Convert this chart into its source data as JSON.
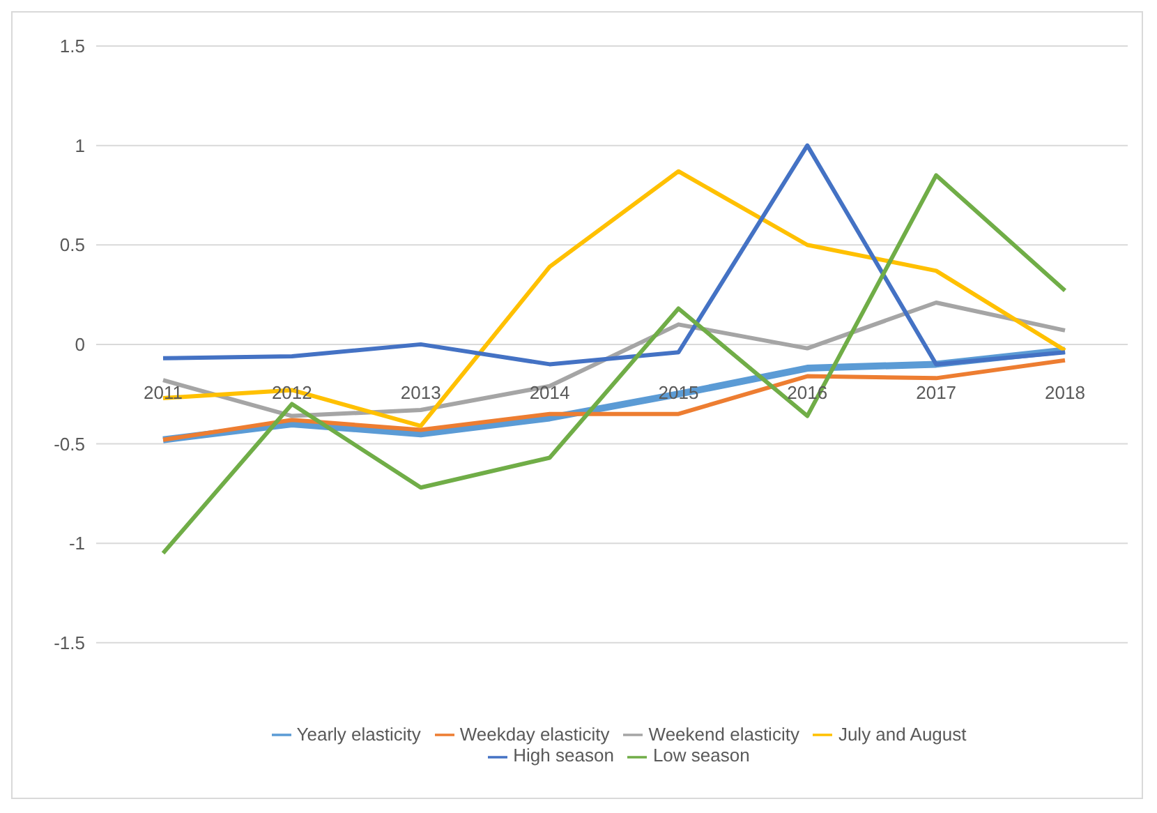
{
  "chart_data": {
    "type": "line",
    "categories": [
      "2011",
      "2012",
      "2013",
      "2014",
      "2015",
      "2016",
      "2017",
      "2018"
    ],
    "series": [
      {
        "name": "Yearly elasticity",
        "color": "#5b9bd5",
        "values": [
          -0.48,
          -0.4,
          -0.45,
          -0.37,
          -0.25,
          -0.12,
          -0.1,
          -0.03
        ]
      },
      {
        "name": "Weekday elasticity",
        "color": "#ed7d31",
        "values": [
          -0.48,
          -0.38,
          -0.43,
          -0.35,
          -0.35,
          -0.16,
          -0.17,
          -0.08
        ]
      },
      {
        "name": "Weekend elasticity",
        "color": "#a5a5a5",
        "values": [
          -0.18,
          -0.36,
          -0.33,
          -0.21,
          0.1,
          -0.02,
          0.21,
          0.07
        ]
      },
      {
        "name": "July and August",
        "color": "#ffc000",
        "values": [
          -0.27,
          -0.23,
          -0.41,
          0.39,
          0.87,
          0.5,
          0.37,
          -0.03
        ]
      },
      {
        "name": "High season",
        "color": "#4472c4",
        "values": [
          -0.07,
          -0.06,
          0,
          -0.1,
          -0.04,
          1.0,
          -0.1,
          -0.04
        ]
      },
      {
        "name": "Low season",
        "color": "#70ad47",
        "values": [
          -1.05,
          -0.3,
          -0.72,
          -0.57,
          0.18,
          -0.36,
          0.85,
          0.27
        ]
      }
    ],
    "ylim": [
      -1.5,
      1.5
    ],
    "yticks": [
      -1.5,
      -1,
      -0.5,
      0,
      0.5,
      1,
      1.5
    ],
    "grid": "y",
    "legend": "bottom",
    "marker": "none",
    "line_style": "solid"
  }
}
